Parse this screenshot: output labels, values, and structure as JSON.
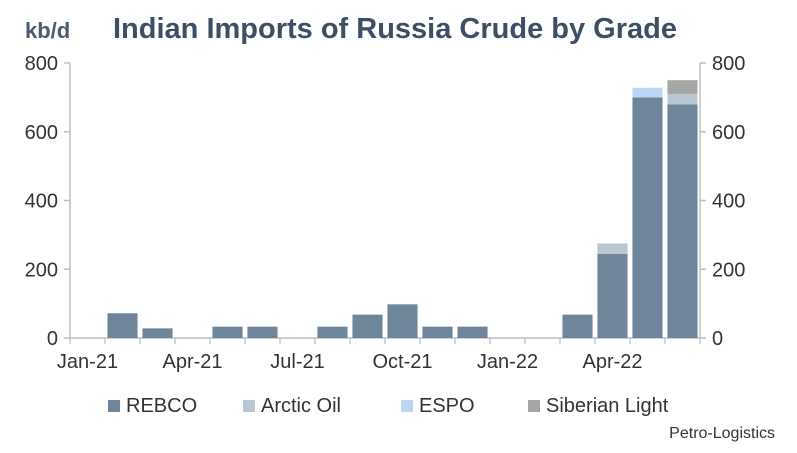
{
  "chart_data": {
    "type": "bar",
    "stacked": true,
    "title": "Indian Imports of Russia Crude by Grade",
    "unit_label": "kb/d",
    "source": "Petro-Logistics",
    "ylim": [
      0,
      800
    ],
    "y_ticks": [
      "0",
      "200",
      "400",
      "600",
      "800"
    ],
    "right_y_ticks": [
      "0",
      "200",
      "400",
      "600",
      "800"
    ],
    "x_tick_labels": [
      "Jan-21",
      "Apr-21",
      "Jul-21",
      "Oct-21",
      "Jan-22",
      "Apr-22"
    ],
    "categories": [
      "Jan-21",
      "Feb-21",
      "Mar-21",
      "Apr-21",
      "May-21",
      "Jun-21",
      "Jul-21",
      "Aug-21",
      "Sep-21",
      "Oct-21",
      "Nov-21",
      "Dec-21",
      "Jan-22",
      "Feb-22",
      "Mar-22",
      "Apr-22",
      "May-22",
      "Jun-22"
    ],
    "series": [
      {
        "name": "REBCO",
        "color": "#6f8599",
        "values": [
          0,
          72,
          28,
          0,
          33,
          33,
          0,
          33,
          68,
          98,
          33,
          33,
          0,
          0,
          68,
          245,
          700,
          680
        ]
      },
      {
        "name": "Arctic Oil",
        "color": "#b9c7d3",
        "values": [
          0,
          0,
          0,
          0,
          0,
          0,
          0,
          0,
          0,
          0,
          0,
          0,
          0,
          0,
          0,
          30,
          0,
          30
        ]
      },
      {
        "name": "ESPO",
        "color": "#bcd6f5",
        "values": [
          0,
          0,
          0,
          0,
          0,
          0,
          0,
          0,
          0,
          0,
          0,
          0,
          0,
          0,
          0,
          0,
          28,
          0
        ]
      },
      {
        "name": "Siberian Light",
        "color": "#a6a6a6",
        "values": [
          0,
          0,
          0,
          0,
          0,
          0,
          0,
          0,
          0,
          0,
          0,
          0,
          0,
          0,
          0,
          0,
          0,
          40
        ]
      }
    ],
    "axis_color": "#bfbfbf",
    "legend_position": "bottom",
    "grid": false
  }
}
